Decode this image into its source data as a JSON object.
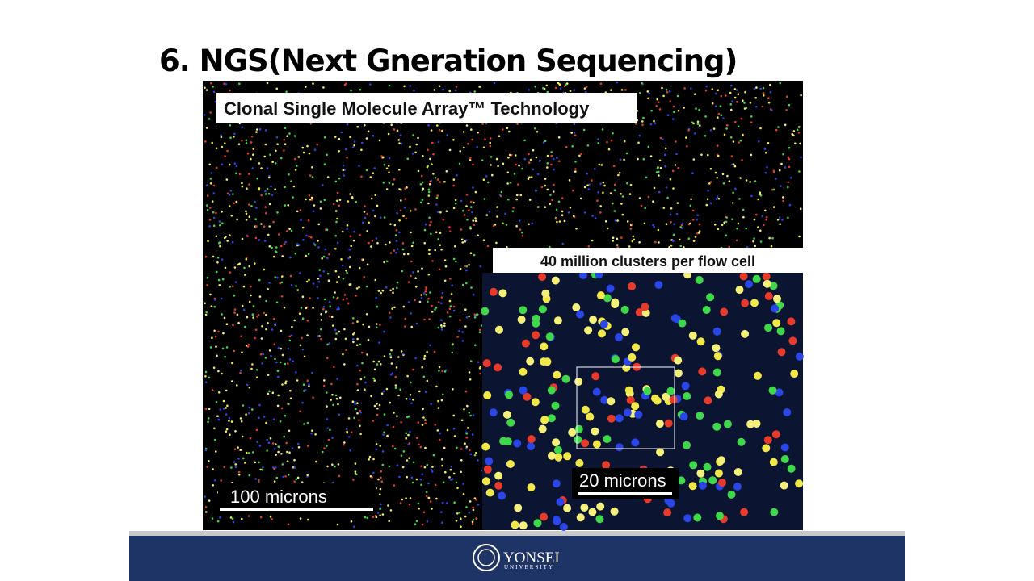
{
  "title": "6. NGS(Next Gneration Sequencing)",
  "figure": {
    "caption": "Clonal Single Molecule Array™ Technology",
    "inset_caption": "40 million clusters per flow cell",
    "scale_bar_main": "100 microns",
    "scale_bar_inset": "20 microns"
  },
  "footer": {
    "name": "YONSEI",
    "subname": "UNIVERSITY"
  }
}
